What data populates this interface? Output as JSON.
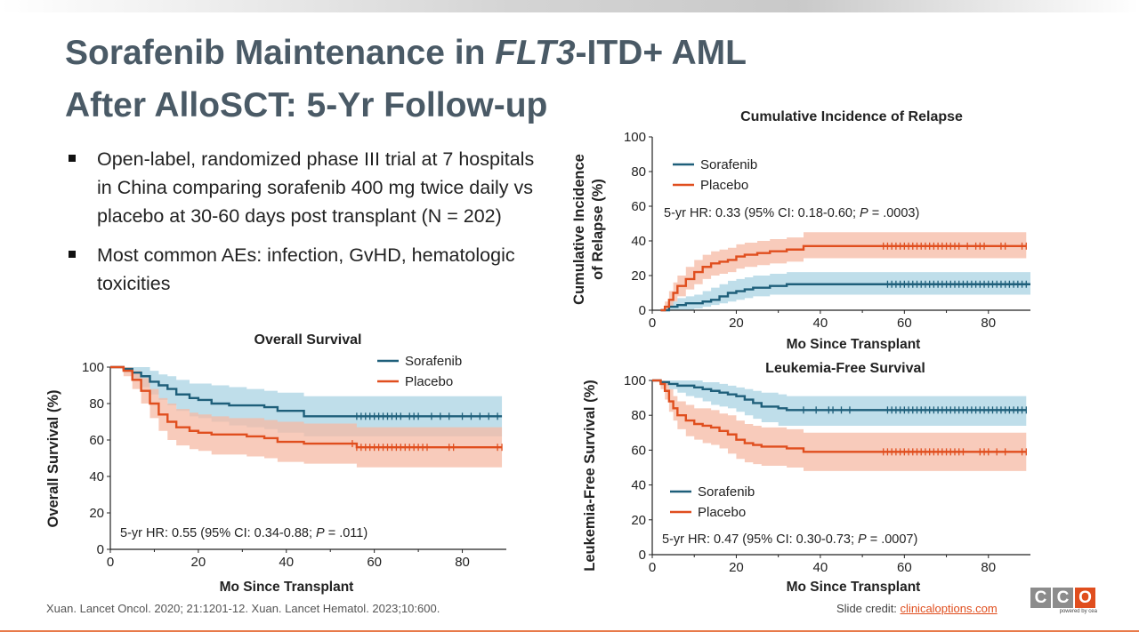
{
  "slide": {
    "title_line1_part1": "Sorafenib Maintenance in ",
    "title_line1_italic": "FLT3",
    "title_line1_part2": "-ITD+ AML",
    "title_line2": "After AlloSCT: 5-Yr Follow-up",
    "bullets": [
      "Open-label, randomized phase III trial at 7 hospitals in China comparing sorafenib 400 mg twice daily vs placebo at 30-60 days post transplant (N = 202)",
      "Most common AEs: infection, GvHD, hematologic toxicities"
    ],
    "reference": "Xuan. Lancet Oncol. 2020; 21:1201-12. Xuan. Lancet Hematol. 2023;10:600.",
    "credit_label": "Slide credit: ",
    "credit_link": "clinicaloptions.com",
    "logo_letters": [
      "C",
      "C",
      "O"
    ],
    "logo_sub": "powered by cea",
    "colors": {
      "sorafenib": "#1e5f7a",
      "placebo": "#e04e1e",
      "sorafenib_band": "#a9d3e3",
      "placebo_band": "#f6b9a4",
      "title": "#4a5a66"
    }
  },
  "chart_data": [
    {
      "id": "os",
      "type": "line",
      "title": "Overall Survival",
      "xlabel": "Mo Since Transplant",
      "ylabel": "Overall Survival (%)",
      "xlim": [
        0,
        90
      ],
      "ylim": [
        0,
        100
      ],
      "xticks": [
        0,
        20,
        40,
        60,
        80
      ],
      "yticks": [
        0,
        20,
        40,
        60,
        80,
        100
      ],
      "legend": "top-right",
      "annotation_pre": "5-yr HR: 0.55 (95% CI: 0.34-0.88; ",
      "annotation_p": "P",
      "annotation_post": " = .011)",
      "series": [
        {
          "name": "Sorafenib",
          "x": [
            0,
            3,
            5,
            7,
            9,
            11,
            13,
            15,
            18,
            20,
            23,
            27,
            31,
            35,
            38,
            44,
            50,
            56,
            60,
            65,
            70,
            75,
            80,
            85,
            89
          ],
          "y": [
            100,
            99,
            97,
            95,
            92,
            90,
            88,
            85,
            83,
            82,
            80,
            79,
            79,
            78,
            76,
            73,
            73,
            73,
            73,
            73,
            73,
            73,
            73,
            73,
            73
          ],
          "lower": [
            100,
            97,
            93,
            89,
            85,
            82,
            79,
            76,
            73,
            72,
            70,
            68,
            67,
            66,
            64,
            62,
            62,
            62,
            62,
            62,
            62,
            62,
            62,
            62,
            62
          ],
          "upper": [
            100,
            100,
            100,
            100,
            98,
            96,
            95,
            93,
            91,
            91,
            90,
            89,
            88,
            87,
            86,
            84,
            84,
            84,
            84,
            84,
            84,
            84,
            84,
            84,
            84
          ],
          "censor_x": [
            56,
            57,
            58,
            59,
            60,
            61,
            62,
            63,
            64,
            65,
            66,
            68,
            69,
            70,
            73,
            75,
            77,
            80,
            82,
            84,
            86,
            88
          ]
        },
        {
          "name": "Placebo",
          "x": [
            0,
            3,
            5,
            7,
            9,
            11,
            13,
            15,
            18,
            20,
            23,
            27,
            31,
            35,
            38,
            44,
            50,
            56,
            60,
            65,
            70,
            75,
            80,
            85,
            89
          ],
          "y": [
            100,
            98,
            93,
            87,
            80,
            74,
            70,
            67,
            65,
            64,
            63,
            63,
            62,
            61,
            59,
            58,
            58,
            56,
            56,
            56,
            56,
            56,
            56,
            56,
            56
          ],
          "lower": [
            100,
            95,
            88,
            80,
            72,
            65,
            60,
            57,
            55,
            54,
            52,
            52,
            51,
            50,
            48,
            47,
            47,
            45,
            45,
            45,
            45,
            45,
            45,
            45,
            45
          ],
          "upper": [
            100,
            100,
            98,
            94,
            88,
            83,
            80,
            77,
            75,
            74,
            73,
            72,
            72,
            71,
            70,
            69,
            69,
            67,
            67,
            67,
            67,
            67,
            67,
            67,
            67
          ],
          "censor_x": [
            55,
            56,
            57,
            58,
            59,
            60,
            61,
            62,
            63,
            64,
            65,
            66,
            67,
            68,
            69,
            70,
            71,
            72,
            77,
            78,
            88,
            89
          ]
        }
      ]
    },
    {
      "id": "cir",
      "type": "line",
      "title": "Cumulative Incidence of Relapse",
      "xlabel": "Mo Since Transplant",
      "ylabel": "Cumulative Incidence of Relapse (%)",
      "xlim": [
        0,
        90
      ],
      "ylim": [
        0,
        100
      ],
      "xticks": [
        0,
        20,
        40,
        60,
        80
      ],
      "yticks": [
        0,
        20,
        40,
        60,
        80,
        100
      ],
      "legend": "top-left",
      "annotation_pre": "5-yr HR: 0.33 (95% CI: 0.18-0.60; ",
      "annotation_p": "P",
      "annotation_post": " = .0003)",
      "series": [
        {
          "name": "Sorafenib",
          "x": [
            2,
            4,
            6,
            8,
            10,
            12,
            14,
            16,
            18,
            20,
            22,
            24,
            28,
            32,
            36,
            40,
            50,
            56,
            60,
            70,
            80,
            90
          ],
          "y": [
            0,
            2,
            3,
            4,
            4,
            5,
            6,
            8,
            10,
            11,
            12,
            13,
            14,
            15,
            15,
            15,
            15,
            15,
            15,
            15,
            15,
            15
          ],
          "lower": [
            0,
            0,
            0,
            0,
            1,
            2,
            3,
            4,
            5,
            6,
            7,
            8,
            9,
            9,
            9,
            9,
            9,
            9,
            9,
            9,
            9,
            9
          ],
          "upper": [
            0,
            5,
            7,
            8,
            9,
            11,
            13,
            15,
            17,
            18,
            19,
            20,
            21,
            22,
            22,
            22,
            22,
            22,
            22,
            22,
            22,
            22
          ],
          "censor_x": [
            56,
            57,
            58,
            59,
            60,
            61,
            62,
            63,
            64,
            65,
            66,
            67,
            68,
            69,
            70,
            71,
            72,
            73,
            74,
            75,
            76,
            77,
            78,
            79,
            80,
            81,
            82,
            83,
            84,
            85,
            86,
            87,
            88,
            89
          ]
        },
        {
          "name": "Placebo",
          "x": [
            2,
            3,
            4,
            5,
            6,
            8,
            10,
            12,
            14,
            16,
            18,
            20,
            22,
            25,
            28,
            32,
            34,
            36,
            40,
            50,
            56,
            60,
            70,
            80,
            89
          ],
          "y": [
            0,
            2,
            6,
            10,
            14,
            18,
            22,
            25,
            27,
            28,
            29,
            31,
            32,
            33,
            34,
            35,
            35,
            37,
            37,
            37,
            37,
            37,
            37,
            37,
            37
          ],
          "lower": [
            0,
            0,
            2,
            5,
            8,
            12,
            15,
            18,
            20,
            21,
            22,
            24,
            25,
            26,
            27,
            28,
            28,
            30,
            30,
            30,
            30,
            30,
            30,
            30,
            30
          ],
          "upper": [
            0,
            5,
            11,
            16,
            20,
            25,
            29,
            32,
            34,
            35,
            36,
            38,
            39,
            40,
            41,
            42,
            42,
            45,
            45,
            45,
            45,
            45,
            45,
            45,
            45
          ],
          "censor_x": [
            55,
            56,
            57,
            58,
            59,
            60,
            61,
            62,
            63,
            64,
            65,
            66,
            67,
            68,
            69,
            70,
            71,
            72,
            73,
            75,
            77,
            78,
            79,
            83,
            84,
            88,
            89
          ]
        }
      ]
    },
    {
      "id": "lfs",
      "type": "line",
      "title": "Leukemia-Free Survival",
      "xlabel": "Mo Since Transplant",
      "ylabel": "Leukemia-Free Survival (%)",
      "xlim": [
        0,
        90
      ],
      "ylim": [
        0,
        100
      ],
      "xticks": [
        0,
        20,
        40,
        60,
        80
      ],
      "yticks": [
        0,
        20,
        40,
        60,
        80,
        100
      ],
      "legend": "bottom-left",
      "annotation_pre": "5-yr HR: 0.47 (95% CI: 0.30-0.73; ",
      "annotation_p": "P",
      "annotation_post": " = .0007)",
      "series": [
        {
          "name": "Sorafenib",
          "x": [
            0,
            2,
            4,
            6,
            8,
            10,
            12,
            14,
            16,
            18,
            20,
            22,
            24,
            26,
            30,
            32,
            36,
            40,
            50,
            56,
            60,
            70,
            80,
            89
          ],
          "y": [
            100,
            99,
            98,
            97,
            97,
            96,
            95,
            94,
            93,
            92,
            91,
            89,
            87,
            85,
            84,
            83,
            83,
            83,
            83,
            83,
            83,
            83,
            83,
            83
          ],
          "lower": [
            100,
            97,
            95,
            93,
            91,
            90,
            88,
            86,
            85,
            84,
            82,
            80,
            78,
            76,
            74,
            74,
            74,
            74,
            74,
            74,
            74,
            74,
            74,
            74
          ],
          "upper": [
            100,
            100,
            100,
            100,
            100,
            100,
            99,
            99,
            98,
            97,
            96,
            95,
            94,
            93,
            92,
            91,
            91,
            91,
            91,
            91,
            91,
            91,
            91,
            91
          ],
          "censor_x": [
            36,
            39,
            42,
            43,
            45,
            47,
            56,
            57,
            58,
            59,
            60,
            61,
            62,
            63,
            64,
            65,
            66,
            67,
            68,
            69,
            70,
            71,
            72,
            73,
            74,
            75,
            76,
            77,
            78,
            79,
            80,
            81,
            82,
            83,
            84,
            85,
            86,
            87,
            88,
            89
          ]
        },
        {
          "name": "Placebo",
          "x": [
            0,
            2,
            3,
            4,
            5,
            6,
            8,
            10,
            12,
            14,
            16,
            18,
            20,
            22,
            24,
            26,
            30,
            32,
            36,
            40,
            50,
            56,
            60,
            70,
            80,
            89
          ],
          "y": [
            100,
            98,
            94,
            88,
            84,
            80,
            77,
            75,
            74,
            73,
            71,
            69,
            66,
            64,
            63,
            62,
            62,
            61,
            59,
            59,
            59,
            59,
            59,
            59,
            59,
            59
          ],
          "lower": [
            100,
            95,
            89,
            82,
            77,
            72,
            68,
            66,
            64,
            63,
            61,
            58,
            55,
            53,
            52,
            51,
            51,
            50,
            48,
            48,
            48,
            48,
            48,
            48,
            48,
            48
          ],
          "upper": [
            100,
            100,
            99,
            95,
            91,
            88,
            86,
            84,
            84,
            83,
            81,
            80,
            77,
            75,
            74,
            73,
            73,
            72,
            70,
            70,
            70,
            70,
            70,
            70,
            70,
            70
          ],
          "censor_x": [
            55,
            56,
            57,
            58,
            59,
            60,
            61,
            62,
            63,
            64,
            65,
            66,
            67,
            68,
            69,
            70,
            71,
            72,
            73,
            74,
            78,
            79,
            80,
            82,
            84,
            88,
            89
          ]
        }
      ]
    }
  ]
}
